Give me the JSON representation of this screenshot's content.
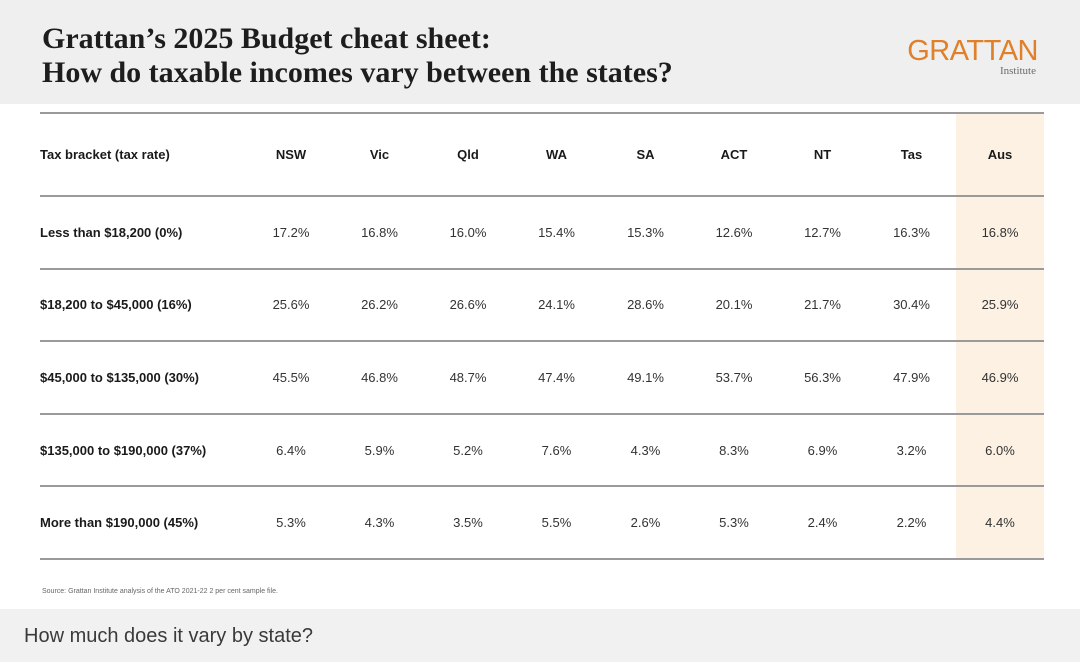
{
  "header": {
    "title_line1": "Grattan’s 2025 Budget cheat sheet:",
    "title_line2": "How do taxable incomes vary between the states?",
    "logo_text": "GRATTAN",
    "logo_subtext": "Institute"
  },
  "table": {
    "columns": [
      "Tax bracket (tax rate)",
      "NSW",
      "Vic",
      "Qld",
      "WA",
      "SA",
      "ACT",
      "NT",
      "Tas",
      "Aus"
    ],
    "rows": [
      [
        "Less than $18,200 (0%)",
        "17.2%",
        "16.8%",
        "16.0%",
        "15.4%",
        "15.3%",
        "12.6%",
        "12.7%",
        "16.3%",
        "16.8%"
      ],
      [
        "$18,200 to $45,000 (16%)",
        "25.6%",
        "26.2%",
        "26.6%",
        "24.1%",
        "28.6%",
        "20.1%",
        "21.7%",
        "30.4%",
        "25.9%"
      ],
      [
        "$45,000 to $135,000 (30%)",
        "45.5%",
        "46.8%",
        "48.7%",
        "47.4%",
        "49.1%",
        "53.7%",
        "56.3%",
        "47.9%",
        "46.9%"
      ],
      [
        "$135,000 to $190,000 (37%)",
        "6.4%",
        "5.9%",
        "5.2%",
        "7.6%",
        "4.3%",
        "8.3%",
        "6.9%",
        "3.2%",
        "6.0%"
      ],
      [
        "More than $190,000 (45%)",
        "5.3%",
        "4.3%",
        "3.5%",
        "5.5%",
        "2.6%",
        "5.3%",
        "2.4%",
        "2.2%",
        "4.4%"
      ]
    ]
  },
  "source": "Source: Grattan Institute analysis of the ATO 2021-22 2 per cent sample file.",
  "footer": {
    "caption": "How much does it vary by state?"
  },
  "colors": {
    "brand_orange": "#e0802a",
    "aus_column_highlight": "#fcf1e3",
    "header_background": "#efefef"
  }
}
